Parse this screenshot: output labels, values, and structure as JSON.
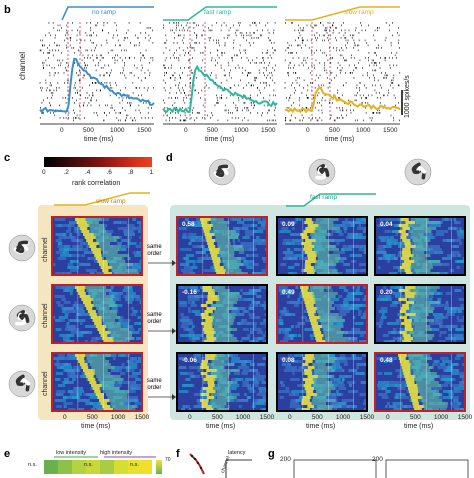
{
  "labels": {
    "b": "b",
    "c": "c",
    "d": "d",
    "e": "e",
    "f": "f",
    "g": "g"
  },
  "panel_b": {
    "channel_label": "channel",
    "scale_bar": "1000 spikes/s",
    "xlabel": "time (ms)",
    "ticks": [
      "0",
      "500",
      "1000",
      "1500"
    ],
    "conditions": [
      {
        "name": "no ramp",
        "color": "#3a8fc8"
      },
      {
        "name": "fast ramp",
        "color": "#2fb79a"
      },
      {
        "name": "slow ramp",
        "color": "#e3b21f"
      }
    ]
  },
  "panel_c": {
    "colorbar_ticks": [
      "0",
      ".2",
      ".4",
      ".6",
      ".8",
      "1"
    ],
    "colorbar_label": "rank correlation",
    "ramp_label": "slow ramp",
    "row_label": "channel",
    "xlabel": "time (ms)",
    "ticks": [
      "0",
      "500",
      "1000",
      "1500"
    ],
    "ramp_color": "#e3b21f"
  },
  "panel_d": {
    "ramp_label": "fast ramp",
    "ramp_color": "#2fb79a",
    "same_order": "same\norder",
    "xlabel": "time (ms)",
    "ticks": [
      "0",
      "500",
      "1000",
      "1500"
    ],
    "values": [
      [
        "0.58",
        "0.09",
        "0.04"
      ],
      [
        "-0.16",
        "0.49",
        "0.20"
      ],
      [
        "-0.06",
        "0.08",
        "0.48"
      ]
    ],
    "highlight": [
      [
        true,
        false,
        false
      ],
      [
        false,
        true,
        false
      ],
      [
        false,
        false,
        true
      ]
    ]
  },
  "panel_e": {
    "low_intensity": "low intensity",
    "high_intensity": "high intensity",
    "ns1": "n.s.",
    "ns2": "n.s.",
    "ns3": "n.s.",
    "colorbar_top": "70"
  },
  "panel_f": {
    "latency_label": "latency",
    "channel_label": "channel"
  },
  "panel_g": {
    "tick1": "200",
    "tick2": "200"
  }
}
